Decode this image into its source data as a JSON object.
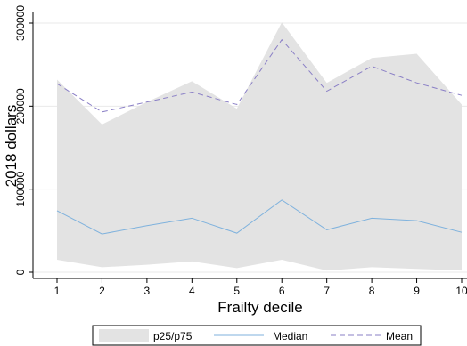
{
  "chart_data": {
    "type": "area",
    "xlabel": "Frailty decile",
    "ylabel": "2018 dollars",
    "x": [
      1,
      2,
      3,
      4,
      5,
      6,
      7,
      8,
      9,
      10
    ],
    "xlim": [
      1,
      10
    ],
    "ylim": [
      -5000,
      300000
    ],
    "xticks": [
      "1",
      "2",
      "3",
      "4",
      "5",
      "6",
      "7",
      "8",
      "9",
      "10"
    ],
    "yticks": [
      {
        "value": 0,
        "label": "0"
      },
      {
        "value": 100000,
        "label": "100000"
      },
      {
        "value": 200000,
        "label": "200000"
      },
      {
        "value": 300000,
        "label": "300000"
      }
    ],
    "grid": true,
    "legend_position": "bottom",
    "series": [
      {
        "name": "p25/p75",
        "kind": "band",
        "color": "#e3e3e3",
        "lower": [
          15000,
          6000,
          9000,
          13000,
          5000,
          15000,
          2000,
          6000,
          4000,
          2000
        ],
        "upper": [
          232000,
          178000,
          205000,
          230000,
          197000,
          301000,
          228000,
          258000,
          263000,
          202000
        ]
      },
      {
        "name": "Median",
        "kind": "line",
        "color": "#7fb2dd",
        "values": [
          74000,
          46000,
          56000,
          65000,
          47000,
          87000,
          51000,
          65000,
          62000,
          48000
        ]
      },
      {
        "name": "Mean",
        "kind": "dashed",
        "color": "#8a7fc6",
        "values": [
          227000,
          193000,
          205000,
          217000,
          202000,
          280000,
          218000,
          248000,
          228000,
          213000
        ]
      }
    ]
  }
}
